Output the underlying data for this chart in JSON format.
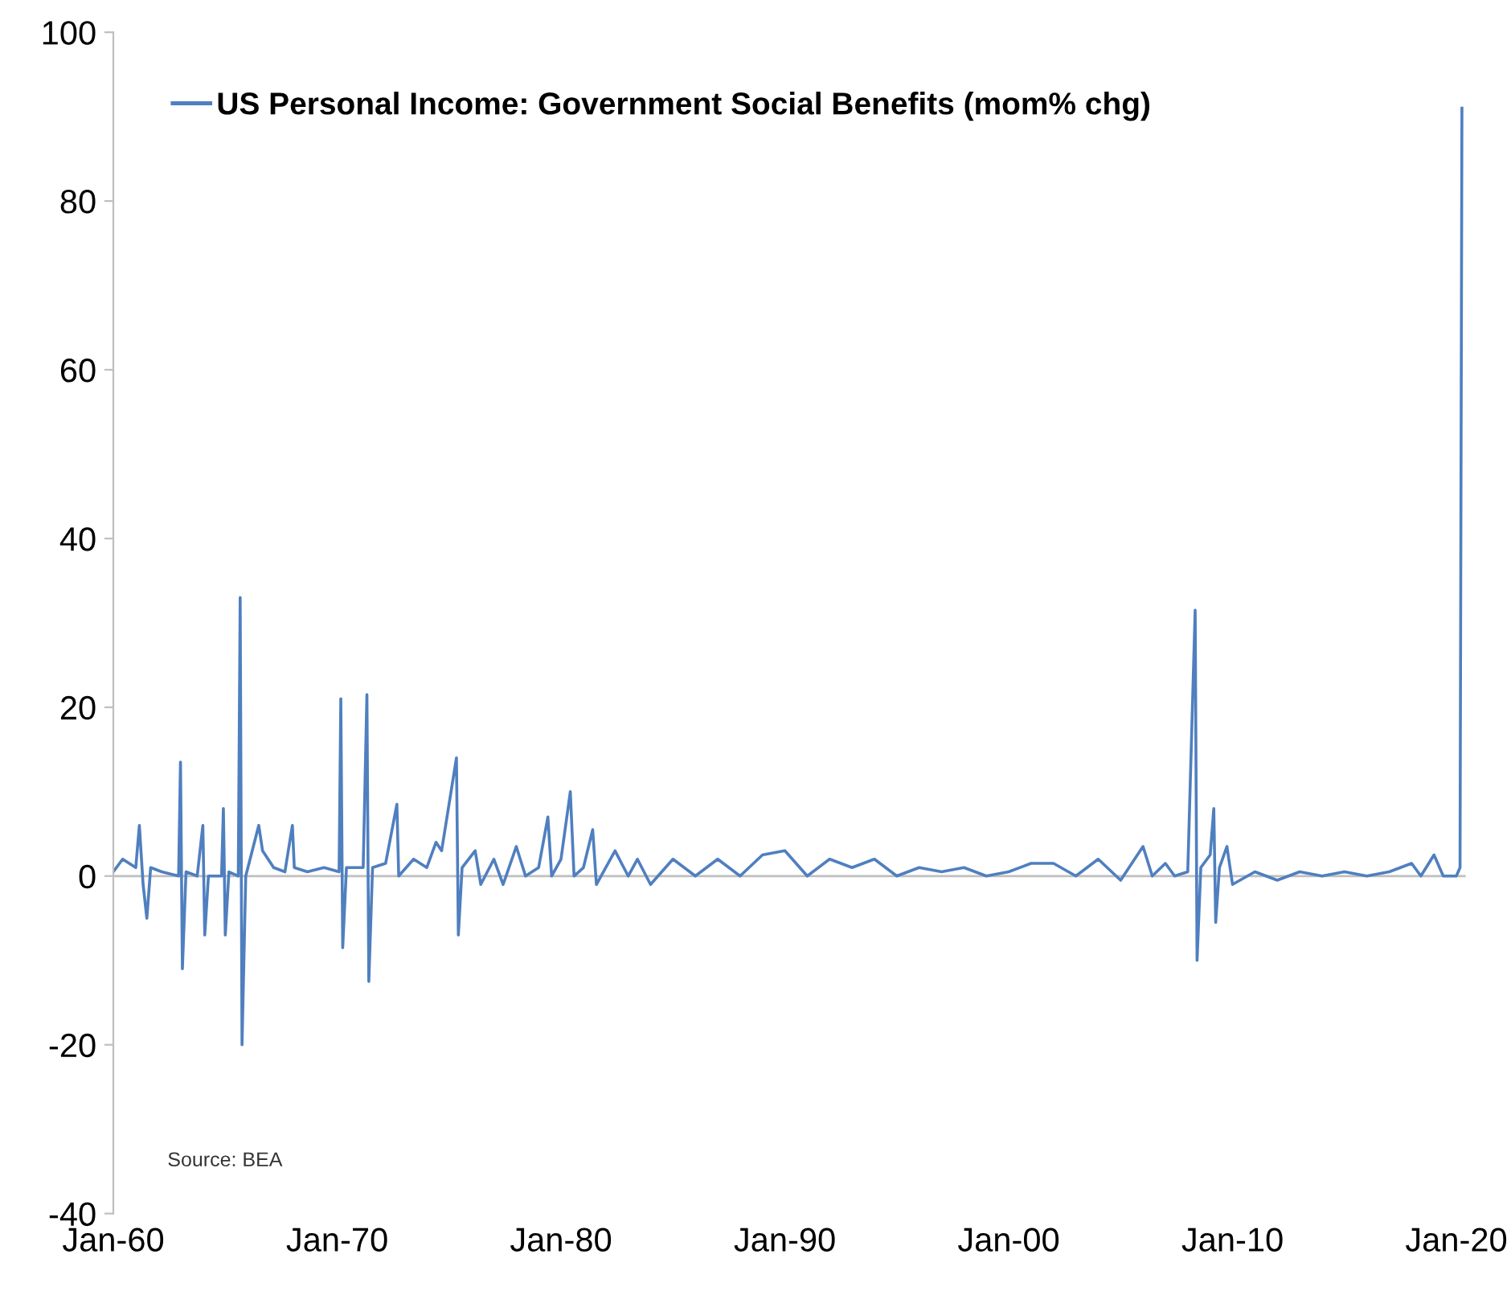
{
  "chart_data": {
    "type": "line",
    "x": [
      "1960-01",
      "1960-06",
      "1961-01",
      "1961-03",
      "1961-05",
      "1961-07",
      "1961-09",
      "1962-03",
      "1962-12",
      "1963-01",
      "1963-02",
      "1963-04",
      "1963-10",
      "1964-01",
      "1964-02",
      "1964-04",
      "1964-11",
      "1964-12",
      "1965-01",
      "1965-03",
      "1965-08",
      "1965-09",
      "1965-10",
      "1965-12",
      "1966-07",
      "1966-09",
      "1967-03",
      "1967-09",
      "1968-01",
      "1968-02",
      "1968-09",
      "1969-06",
      "1970-02",
      "1970-03",
      "1970-04",
      "1970-06",
      "1971-03",
      "1971-05",
      "1971-06",
      "1971-08",
      "1972-03",
      "1972-09",
      "1972-10",
      "1973-06",
      "1974-01",
      "1974-06",
      "1974-09",
      "1975-05",
      "1975-06",
      "1975-08",
      "1976-03",
      "1976-06",
      "1977-01",
      "1977-06",
      "1978-01",
      "1978-06",
      "1979-01",
      "1979-06",
      "1979-08",
      "1980-01",
      "1980-06",
      "1980-08",
      "1981-01",
      "1981-06",
      "1981-08",
      "1982-06",
      "1983-01",
      "1983-06",
      "1984-01",
      "1985-01",
      "1986-01",
      "1987-01",
      "1988-01",
      "1989-01",
      "1990-01",
      "1991-01",
      "1992-01",
      "1993-01",
      "1994-01",
      "1995-01",
      "1996-01",
      "1997-01",
      "1998-01",
      "1999-01",
      "2000-01",
      "2001-01",
      "2002-01",
      "2003-01",
      "2004-01",
      "2005-01",
      "2006-01",
      "2006-06",
      "2007-01",
      "2007-06",
      "2008-01",
      "2008-05",
      "2008-06",
      "2008-08",
      "2009-01",
      "2009-03",
      "2009-04",
      "2009-06",
      "2009-10",
      "2010-01",
      "2011-01",
      "2012-01",
      "2013-01",
      "2014-01",
      "2015-01",
      "2016-01",
      "2017-01",
      "2018-01",
      "2018-06",
      "2019-01",
      "2019-06",
      "2020-01",
      "2020-03",
      "2020-04"
    ],
    "series": [
      {
        "name": "US Personal Income: Government Social Benefits (mom% chg)",
        "color": "#4f7fbf",
        "values": [
          0.5,
          2,
          1,
          6,
          -1,
          -5,
          1,
          0.5,
          0,
          13.5,
          -11,
          0.5,
          0,
          6,
          -7,
          0,
          0,
          8,
          -7,
          0.5,
          0,
          33,
          -20,
          0,
          6,
          3,
          1,
          0.5,
          6,
          1,
          0.5,
          1,
          0.5,
          21,
          -8.5,
          1,
          1,
          21.5,
          -12.5,
          1,
          1.5,
          8.5,
          0,
          2,
          1,
          4,
          3,
          14,
          -7,
          1,
          3,
          -1,
          2,
          -1,
          3.5,
          0,
          1,
          7,
          0,
          2,
          10,
          0,
          1,
          5.5,
          -1,
          3,
          0,
          2,
          -1,
          2,
          0,
          2,
          0,
          2.5,
          3,
          0,
          2,
          1,
          2,
          0,
          1,
          0.5,
          1,
          0,
          0.5,
          1.5,
          1.5,
          0,
          2,
          -0.5,
          3.5,
          0,
          1.5,
          0,
          0.5,
          31.5,
          -10,
          1,
          2.5,
          8,
          -5.5,
          1,
          3.5,
          -1,
          0.5,
          -0.5,
          0.5,
          0,
          0.5,
          0,
          0.5,
          1.5,
          0,
          2.5,
          0,
          0,
          1,
          91
        ]
      }
    ],
    "xlim": [
      "1960-01",
      "2020-06"
    ],
    "xticks": [
      {
        "value": "1960-01",
        "label": "Jan-60"
      },
      {
        "value": "1970-01",
        "label": "Jan-70"
      },
      {
        "value": "1980-01",
        "label": "Jan-80"
      },
      {
        "value": "1990-01",
        "label": "Jan-90"
      },
      {
        "value": "2000-01",
        "label": "Jan-00"
      },
      {
        "value": "2010-01",
        "label": "Jan-10"
      },
      {
        "value": "2020-01",
        "label": "Jan-20"
      }
    ],
    "ylim": [
      -40,
      100
    ],
    "yticks": [
      -40,
      -20,
      0,
      20,
      40,
      60,
      80,
      100
    ],
    "ref_lines": [
      {
        "axis": "y",
        "value": 0,
        "color": "#bfbfbf"
      }
    ],
    "annotations": [
      "Source: BEA"
    ],
    "legend": "top left",
    "grid": false,
    "marker": "none",
    "line_style": "solid"
  }
}
